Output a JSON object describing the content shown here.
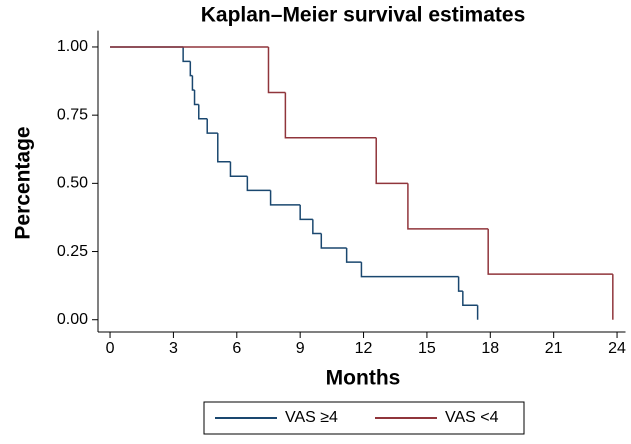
{
  "chart_data": {
    "type": "step",
    "title": "Kaplan–Meier survival estimates",
    "x_label": "Months",
    "y_label": "Percentage",
    "xlim": [
      -0.57,
      24.4
    ],
    "ylim": [
      -0.045,
      1.06
    ],
    "xticks": [
      0,
      3,
      6,
      9,
      12,
      15,
      18,
      21,
      24
    ],
    "yticks": [
      {
        "value": 0,
        "label": "0.00"
      },
      {
        "value": 0.25,
        "label": "0.25"
      },
      {
        "value": 0.5,
        "label": "0.50"
      },
      {
        "value": 0.75,
        "label": "0.75"
      },
      {
        "value": 1,
        "label": "1.00"
      }
    ],
    "series": [
      {
        "name": "VAS ≥4",
        "color": "#1a476f",
        "x": [
          0,
          3.46,
          3.8,
          3.9,
          4.0,
          4.2,
          4.6,
          5.1,
          5.7,
          6.5,
          7.6,
          9.0,
          9.6,
          10.0,
          11.2,
          11.9,
          16.5,
          16.7,
          17.4
        ],
        "values": [
          1,
          0.947,
          0.895,
          0.842,
          0.789,
          0.737,
          0.684,
          0.579,
          0.526,
          0.474,
          0.421,
          0.368,
          0.316,
          0.263,
          0.211,
          0.158,
          0.105,
          0.053,
          0
        ]
      },
      {
        "name": "VAS <4",
        "color": "#90353b",
        "x": [
          0,
          7.5,
          8.3,
          12.6,
          14.1,
          17.9,
          23.8
        ],
        "values": [
          1,
          0.833,
          0.667,
          0.5,
          0.333,
          0.167,
          0
        ]
      }
    ]
  }
}
